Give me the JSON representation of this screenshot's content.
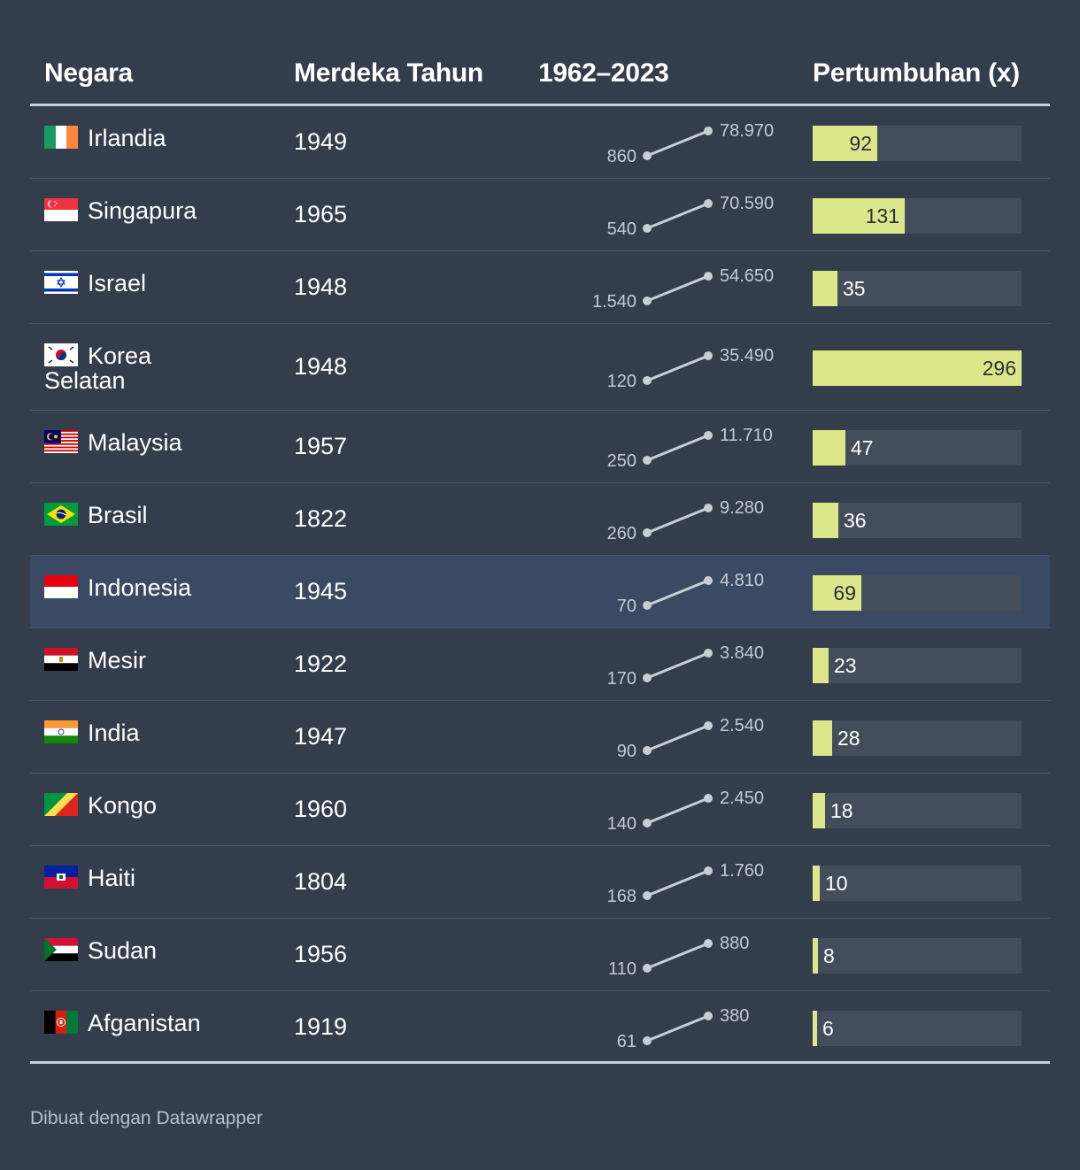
{
  "header": {
    "col_country": "Negara",
    "col_year": "Merdeka Tahun",
    "col_range": "1962–2023",
    "col_growth": "Pertumbuhan (x)"
  },
  "footer": "Dibuat dengan Datawrapper",
  "colors": {
    "background": "#333d4c",
    "bar": "#dce78a",
    "bar_track": "#444d5b",
    "highlight_row": "#3a4a63",
    "slope_line": "#c9ced6"
  },
  "rows": [
    {
      "country": "Irlandia",
      "flag": "ireland-flag-icon",
      "year": "1949",
      "start": "860",
      "end": "78.970",
      "growth": "92",
      "highlight": false
    },
    {
      "country": "Singapura",
      "flag": "singapore-flag-icon",
      "year": "1965",
      "start": "540",
      "end": "70.590",
      "growth": "131",
      "highlight": false
    },
    {
      "country": "Israel",
      "flag": "israel-flag-icon",
      "year": "1948",
      "start": "1.540",
      "end": "54.650",
      "growth": "35",
      "highlight": false
    },
    {
      "country": "Korea Selatan",
      "flag": "south-korea-flag-icon",
      "year": "1948",
      "start": "120",
      "end": "35.490",
      "growth": "296",
      "highlight": false
    },
    {
      "country": "Malaysia",
      "flag": "malaysia-flag-icon",
      "year": "1957",
      "start": "250",
      "end": "11.710",
      "growth": "47",
      "highlight": false
    },
    {
      "country": "Brasil",
      "flag": "brazil-flag-icon",
      "year": "1822",
      "start": "260",
      "end": "9.280",
      "growth": "36",
      "highlight": false
    },
    {
      "country": "Indonesia",
      "flag": "indonesia-flag-icon",
      "year": "1945",
      "start": "70",
      "end": "4.810",
      "growth": "69",
      "highlight": true
    },
    {
      "country": "Mesir",
      "flag": "egypt-flag-icon",
      "year": "1922",
      "start": "170",
      "end": "3.840",
      "growth": "23",
      "highlight": false
    },
    {
      "country": "India",
      "flag": "india-flag-icon",
      "year": "1947",
      "start": "90",
      "end": "2.540",
      "growth": "28",
      "highlight": false
    },
    {
      "country": "Kongo",
      "flag": "congo-flag-icon",
      "year": "1960",
      "start": "140",
      "end": "2.450",
      "growth": "18",
      "highlight": false
    },
    {
      "country": "Haiti",
      "flag": "haiti-flag-icon",
      "year": "1804",
      "start": "168",
      "end": "1.760",
      "growth": "10",
      "highlight": false
    },
    {
      "country": "Sudan",
      "flag": "sudan-flag-icon",
      "year": "1956",
      "start": "110",
      "end": "880",
      "growth": "8",
      "highlight": false
    },
    {
      "country": "Afganistan",
      "flag": "afghanistan-flag-icon",
      "year": "1919",
      "start": "61",
      "end": "380",
      "growth": "6",
      "highlight": false
    }
  ],
  "chart_data": {
    "type": "table",
    "columns": [
      "Negara",
      "Merdeka Tahun",
      "1962–2023",
      "Pertumbuhan (x)"
    ],
    "categories": [
      "Irlandia",
      "Singapura",
      "Israel",
      "Korea Selatan",
      "Malaysia",
      "Brasil",
      "Indonesia",
      "Mesir",
      "India",
      "Kongo",
      "Haiti",
      "Sudan",
      "Afganistan"
    ],
    "x": [
      1962,
      2023
    ],
    "series": [
      {
        "name": "1962–2023",
        "values": [
          [
            860,
            78970
          ],
          [
            540,
            70590
          ],
          [
            1540,
            54650
          ],
          [
            120,
            35490
          ],
          [
            250,
            11710
          ],
          [
            260,
            9280
          ],
          [
            70,
            4810
          ],
          [
            170,
            3840
          ],
          [
            90,
            2540
          ],
          [
            140,
            2450
          ],
          [
            168,
            1760
          ],
          [
            110,
            880
          ],
          [
            61,
            380
          ]
        ]
      },
      {
        "name": "Pertumbuhan (x)",
        "values": [
          92,
          131,
          35,
          296,
          47,
          36,
          69,
          23,
          28,
          18,
          10,
          8,
          6
        ]
      }
    ],
    "independence_year": [
      1949,
      1965,
      1948,
      1948,
      1957,
      1822,
      1945,
      1922,
      1947,
      1960,
      1804,
      1956,
      1919
    ],
    "growth_max": 296,
    "highlighted": "Indonesia"
  }
}
